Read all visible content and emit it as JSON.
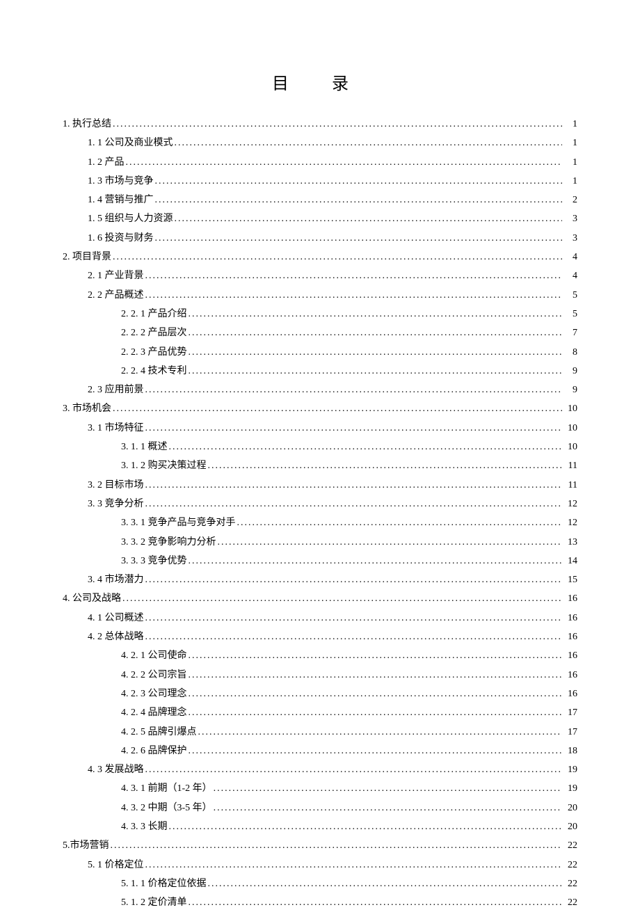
{
  "title": "目 录",
  "text_color": "#000000",
  "background_color": "#ffffff",
  "font_family": "SimSun",
  "title_fontsize": 24,
  "entry_fontsize": 14,
  "entries": [
    {
      "level": 0,
      "label": "1. 执行总结",
      "page": "1"
    },
    {
      "level": 1,
      "label": "1. 1 公司及商业模式",
      "page": "1"
    },
    {
      "level": 1,
      "label": "1. 2 产品",
      "page": "1"
    },
    {
      "level": 1,
      "label": "1. 3 市场与竞争",
      "page": "1"
    },
    {
      "level": 1,
      "label": "1. 4 营销与推广",
      "page": "2"
    },
    {
      "level": 1,
      "label": "1. 5 组织与人力资源",
      "page": "3"
    },
    {
      "level": 1,
      "label": "1. 6 投资与财务",
      "page": "3"
    },
    {
      "level": 0,
      "label": "2. 项目背景",
      "page": "4"
    },
    {
      "level": 1,
      "label": "2. 1 产业背景",
      "page": "4"
    },
    {
      "level": 1,
      "label": "2. 2 产品概述",
      "page": "5"
    },
    {
      "level": 2,
      "label": "2. 2. 1 产品介绍",
      "page": "5"
    },
    {
      "level": 2,
      "label": "2. 2. 2 产品层次",
      "page": "7"
    },
    {
      "level": 2,
      "label": "2. 2. 3 产品优势",
      "page": "8"
    },
    {
      "level": 2,
      "label": "2. 2. 4 技术专利",
      "page": "9"
    },
    {
      "level": 1,
      "label": "2. 3 应用前景",
      "page": "9"
    },
    {
      "level": 0,
      "label": "3. 市场机会",
      "page": "10"
    },
    {
      "level": 1,
      "label": "3. 1 市场特征",
      "page": "10"
    },
    {
      "level": 2,
      "label": "3. 1. 1 概述",
      "page": "10"
    },
    {
      "level": 2,
      "label": "3. 1. 2 购买决策过程",
      "page": "11"
    },
    {
      "level": 1,
      "label": "3. 2 目标市场",
      "page": "11"
    },
    {
      "level": 1,
      "label": "3. 3 竞争分析",
      "page": "12"
    },
    {
      "level": 2,
      "label": "3. 3. 1 竞争产品与竞争对手",
      "page": "12"
    },
    {
      "level": 2,
      "label": "3. 3. 2 竞争影响力分析",
      "page": "13"
    },
    {
      "level": 2,
      "label": "3. 3. 3 竞争优势",
      "page": "14"
    },
    {
      "level": 1,
      "label": "3. 4 市场潜力",
      "page": "15"
    },
    {
      "level": 0,
      "label": "4. 公司及战略",
      "page": "16"
    },
    {
      "level": 1,
      "label": "4. 1 公司概述",
      "page": "16"
    },
    {
      "level": 1,
      "label": "4. 2 总体战略",
      "page": "16"
    },
    {
      "level": 2,
      "label": "4. 2. 1 公司使命",
      "page": "16"
    },
    {
      "level": 2,
      "label": "4. 2. 2 公司宗旨",
      "page": "16"
    },
    {
      "level": 2,
      "label": "4. 2. 3 公司理念",
      "page": "16"
    },
    {
      "level": 2,
      "label": "4. 2. 4 品牌理念",
      "page": "17"
    },
    {
      "level": 2,
      "label": "4. 2. 5 品牌引爆点",
      "page": "17"
    },
    {
      "level": 2,
      "label": "4. 2. 6 品牌保护",
      "page": "18"
    },
    {
      "level": 1,
      "label": "4. 3 发展战略",
      "page": "19"
    },
    {
      "level": 2,
      "label": "4. 3. 1 前期（1-2 年）",
      "page": "19"
    },
    {
      "level": 2,
      "label": "4. 3. 2 中期（3-5 年）",
      "page": "20"
    },
    {
      "level": 2,
      "label": "4. 3. 3 长期",
      "page": "20"
    },
    {
      "level": 0,
      "label": "5.市场营销",
      "page": "22"
    },
    {
      "level": 1,
      "label": "5. 1 价格定位",
      "page": "22"
    },
    {
      "level": 2,
      "label": "5. 1. 1 价格定位依据",
      "page": "22"
    },
    {
      "level": 2,
      "label": "5. 1. 2 定价清单",
      "page": "22"
    }
  ]
}
